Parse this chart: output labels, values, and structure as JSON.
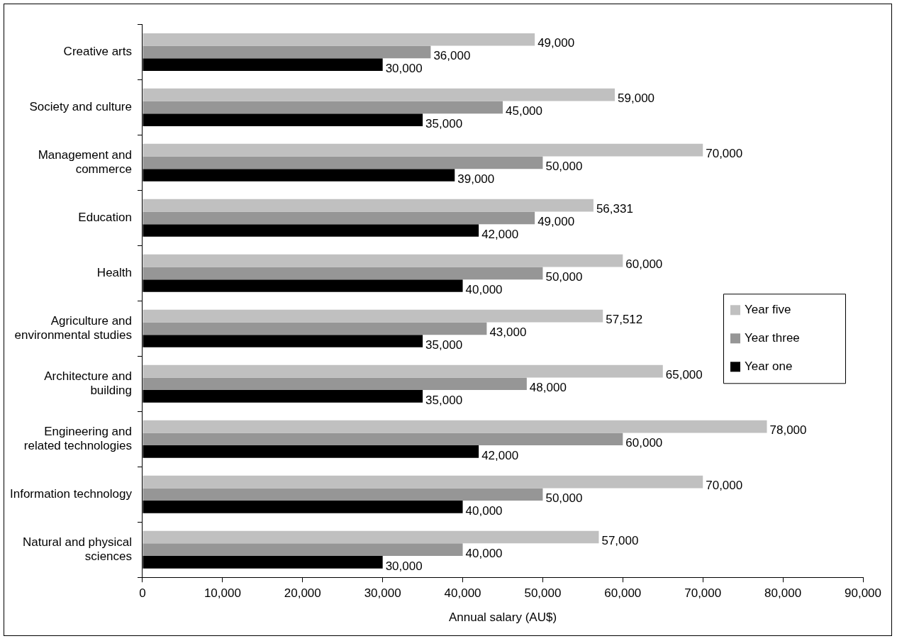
{
  "chart_data": {
    "type": "bar",
    "orientation": "horizontal",
    "xlabel": "Annual salary (AU$)",
    "categories": [
      "Creative arts",
      "Society and culture",
      "Management and commerce",
      "Education",
      "Health",
      "Agriculture and environmental studies",
      "Architecture and building",
      "Engineering and related technologies",
      "Information technology",
      "Natural and physical sciences"
    ],
    "series": [
      {
        "name": "Year five",
        "color": "#c0c0c0",
        "values": [
          49000,
          59000,
          70000,
          56331,
          60000,
          57512,
          65000,
          78000,
          70000,
          57000
        ],
        "value_labels": [
          "49,000",
          "59,000",
          "70,000",
          "56,331",
          "60,000",
          "57,512",
          "65,000",
          "78,000",
          "70,000",
          "57,000"
        ]
      },
      {
        "name": "Year three",
        "color": "#969696",
        "values": [
          36000,
          45000,
          50000,
          49000,
          50000,
          43000,
          48000,
          60000,
          50000,
          40000
        ],
        "value_labels": [
          "36,000",
          "45,000",
          "50,000",
          "49,000",
          "50,000",
          "43,000",
          "48,000",
          "60,000",
          "50,000",
          "40,000"
        ]
      },
      {
        "name": "Year one",
        "color": "#000000",
        "values": [
          30000,
          35000,
          39000,
          42000,
          40000,
          35000,
          35000,
          42000,
          40000,
          30000
        ],
        "value_labels": [
          "30,000",
          "35,000",
          "39,000",
          "42,000",
          "40,000",
          "35,000",
          "35,000",
          "42,000",
          "40,000",
          "30,000"
        ]
      }
    ],
    "xlim": [
      0,
      90000
    ],
    "xticks": [
      {
        "value": 0,
        "label": "0"
      },
      {
        "value": 10000,
        "label": "10,000"
      },
      {
        "value": 20000,
        "label": "20,000"
      },
      {
        "value": 30000,
        "label": "30,000"
      },
      {
        "value": 40000,
        "label": "40,000"
      },
      {
        "value": 50000,
        "label": "50,000"
      },
      {
        "value": 60000,
        "label": "60,000"
      },
      {
        "value": 70000,
        "label": "70,000"
      },
      {
        "value": 80000,
        "label": "80,000"
      },
      {
        "value": 90000,
        "label": "90,000"
      }
    ],
    "grid": false,
    "legend": "right"
  }
}
